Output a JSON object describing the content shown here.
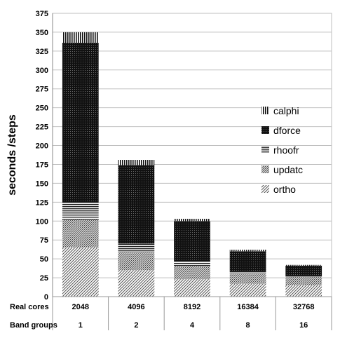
{
  "chart_data": {
    "type": "bar",
    "stacked": true,
    "ylabel": "seconds /steps",
    "ylim": [
      0,
      375
    ],
    "ytick_step": 25,
    "grid": true,
    "legend_position": "right",
    "categories": [
      "2048",
      "4096",
      "8192",
      "16384",
      "32768"
    ],
    "table_rows": [
      {
        "label": "Real cores",
        "values": [
          "2048",
          "4096",
          "8192",
          "16384",
          "32768"
        ]
      },
      {
        "label": "Band groups",
        "values": [
          "1",
          "2",
          "4",
          "8",
          "16"
        ]
      }
    ],
    "series": [
      {
        "name": "ortho",
        "values": [
          65,
          35,
          23,
          17,
          15
        ],
        "pattern": "diag-dense"
      },
      {
        "name": "updatc",
        "values": [
          37,
          23,
          17,
          13,
          11
        ],
        "pattern": "dots"
      },
      {
        "name": "rhoofr",
        "values": [
          23,
          12,
          7,
          3,
          1
        ],
        "pattern": "hlines"
      },
      {
        "name": "dforce",
        "values": [
          211,
          104,
          53,
          27,
          14
        ],
        "pattern": "black-dots"
      },
      {
        "name": "calphi",
        "values": [
          14,
          7,
          3,
          2,
          1
        ],
        "pattern": "vlines"
      }
    ],
    "legend_order": [
      "calphi",
      "dforce",
      "rhoofr",
      "updatc",
      "ortho"
    ]
  }
}
